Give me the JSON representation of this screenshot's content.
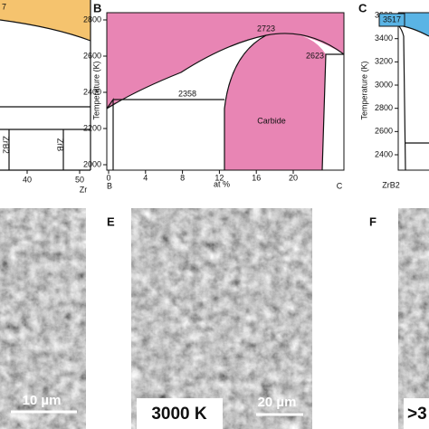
{
  "panel_a": {
    "annotation": "7",
    "phase_labels": [
      "ZrB2",
      "ZrB"
    ],
    "x_ticks": [
      40,
      50
    ],
    "x_end_label": "Zr"
  },
  "panel_b": {
    "label": "B",
    "y_axis_label": "Temperature (K)",
    "y_ticks": [
      2000,
      2200,
      2400,
      2600,
      2800
    ],
    "x_ticks": [
      0,
      4,
      8,
      12,
      16,
      20
    ],
    "x_axis_label": "at %",
    "x_end_labels": [
      "B",
      "C"
    ],
    "annotations": [
      "2723",
      "2623",
      "2358",
      "Carbide"
    ]
  },
  "panel_c": {
    "label": "C",
    "y_axis_label": "Temperature (K)",
    "y_ticks": [
      2400,
      2600,
      2800,
      3000,
      3200,
      3400,
      3600
    ],
    "annotation": "3517",
    "x_end_label": "ZrB2"
  },
  "panel_d": {
    "scale_bar": "10 µm"
  },
  "panel_e": {
    "label": "E",
    "temperature": "3000 K",
    "scale_bar": "20 µm"
  },
  "panel_f": {
    "label": "F",
    "temperature": ">3"
  }
}
